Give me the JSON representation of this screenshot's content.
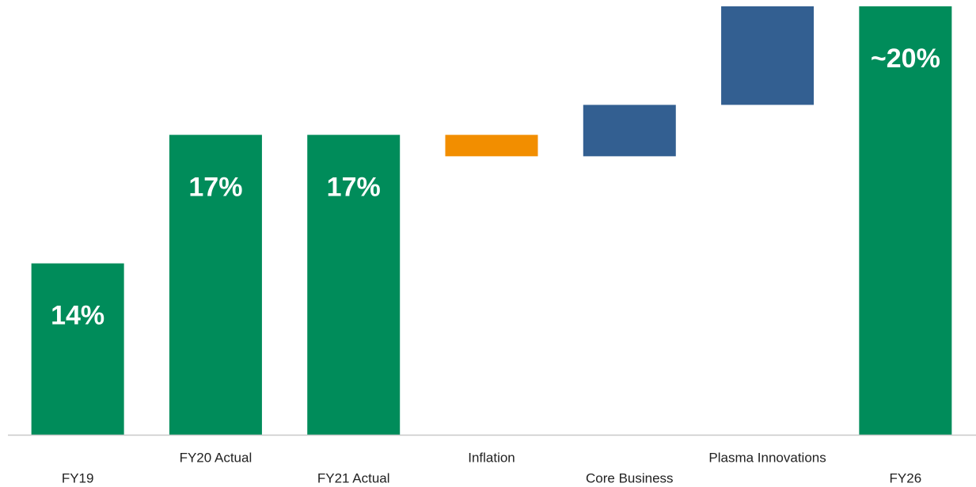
{
  "chart_data": {
    "type": "waterfall",
    "categories": [
      "FY19",
      "FY20 Actual",
      "FY21 Actual",
      "Inflation",
      "Core Business",
      "Plasma Innovations",
      "FY26"
    ],
    "measure": [
      "absolute",
      "absolute",
      "absolute",
      "relative",
      "relative",
      "relative",
      "absolute"
    ],
    "values": [
      14,
      17,
      17,
      -0.5,
      1.2,
      2.3,
      20
    ],
    "value_labels": [
      "14%",
      "17%",
      "17%",
      null,
      null,
      null,
      "~20%"
    ],
    "colors": [
      "#008c5a",
      "#008c5a",
      "#008c5a",
      "#f28e00",
      "#335f91",
      "#335f91",
      "#008c5a"
    ],
    "ylim": [
      10,
      20
    ]
  }
}
